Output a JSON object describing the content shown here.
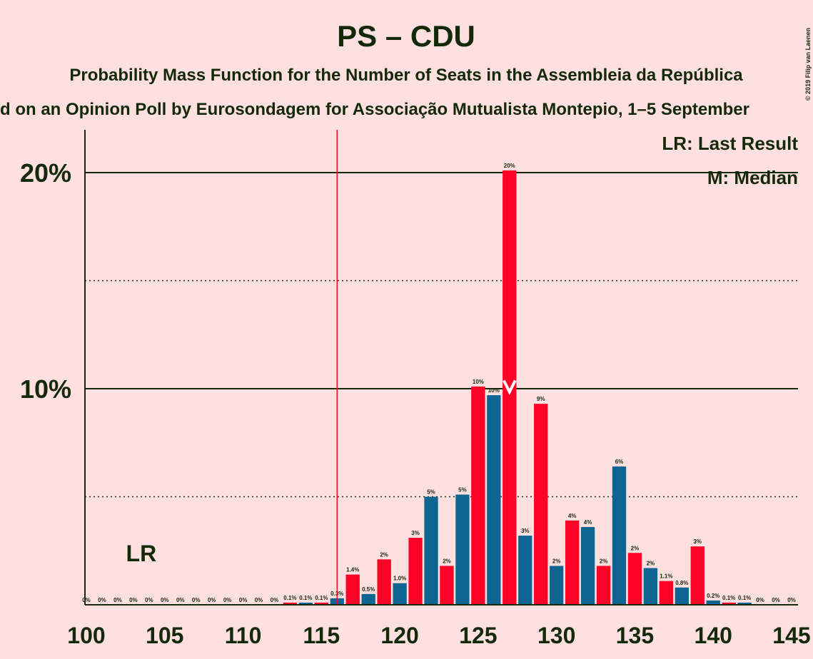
{
  "chart_data": {
    "type": "bar",
    "title": "PS – CDU",
    "subtitle": "Probability Mass Function for the Number of Seats in the Assembleia da República",
    "subtitle2": "d on an Opinion Poll by Eurosondagem for Associação Mutualista Montepio, 1–5 September",
    "copyright": "© 2019 Filip van Laenen",
    "x": [
      100,
      101,
      102,
      103,
      104,
      105,
      106,
      107,
      108,
      109,
      110,
      111,
      112,
      113,
      114,
      115,
      116,
      117,
      118,
      119,
      120,
      121,
      122,
      123,
      124,
      125,
      126,
      127,
      128,
      129,
      130,
      131,
      132,
      133,
      134,
      135,
      136,
      137,
      138,
      139,
      140,
      141,
      142,
      143,
      144,
      145
    ],
    "values": [
      0,
      0,
      0,
      0,
      0,
      0,
      0,
      0,
      0,
      0,
      0,
      0,
      0,
      0.1,
      0.1,
      0.1,
      0.3,
      1.4,
      0.5,
      2.1,
      1.0,
      3.1,
      5.0,
      1.8,
      5.1,
      10.1,
      9.7,
      20.1,
      3.2,
      9.3,
      1.8,
      3.9,
      3.6,
      1.8,
      6.4,
      2.4,
      1.7,
      1.1,
      0.8,
      2.7,
      0.2,
      0.1,
      0.1,
      0,
      0,
      0
    ],
    "value_labels": [
      "0%",
      "0%",
      "0%",
      "0%",
      "0%",
      "0%",
      "0%",
      "0%",
      "0%",
      "0%",
      "0%",
      "0%",
      "0%",
      "0.1%",
      "0.1%",
      "0.1%",
      "0.3%",
      "1.4%",
      "0.5%",
      "2%",
      "1.0%",
      "3%",
      "5%",
      "2%",
      "5%",
      "10%",
      "10%",
      "20%",
      "3%",
      "9%",
      "2%",
      "4%",
      "4%",
      "2%",
      "6%",
      "2%",
      "2%",
      "1.1%",
      "0.8%",
      "3%",
      "0.2%",
      "0.1%",
      "0.1%",
      "0%",
      "0%",
      "0%"
    ],
    "bar_colors": [
      "#0e6591",
      "#ff0026"
    ],
    "xlim": [
      100,
      145
    ],
    "xticks": [
      100,
      105,
      110,
      115,
      120,
      125,
      130,
      135,
      140,
      145
    ],
    "ylim": [
      0,
      22
    ],
    "yticks": [
      {
        "value": 10,
        "label": "10%"
      },
      {
        "value": 20,
        "label": "20%"
      }
    ],
    "ygrid_minor": [
      5,
      15
    ],
    "last_result": 116,
    "lr_label": "LR",
    "median": 127,
    "legend": [
      "LR: Last Result",
      "M: Median"
    ]
  }
}
